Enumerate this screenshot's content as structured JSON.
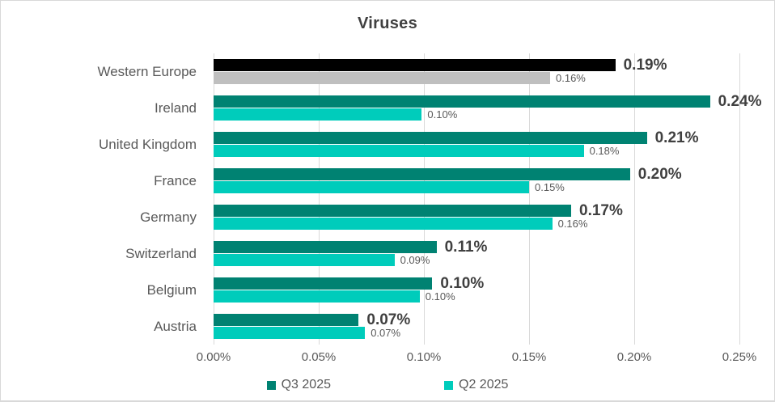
{
  "chart_data": {
    "type": "bar",
    "orientation": "horizontal",
    "title": "Viruses",
    "xlabel": "",
    "ylabel": "",
    "xlim_percent": [
      0,
      0.25
    ],
    "x_tick_labels": [
      "0.00%",
      "0.05%",
      "0.10%",
      "0.15%",
      "0.20%",
      "0.25%"
    ],
    "grid": true,
    "legend_position": "bottom",
    "legend": [
      {
        "label": "Q3 2025",
        "color": "#008272"
      },
      {
        "label": "Q2 2025",
        "color": "#00CCBB"
      }
    ],
    "rows": [
      {
        "category": "Western Europe",
        "q3": {
          "value": 0.191,
          "label": "0.19%",
          "color": "#000000"
        },
        "q2": {
          "value": 0.16,
          "label": "0.16%",
          "color": "#BFBFBF"
        }
      },
      {
        "category": "Ireland",
        "q3": {
          "value": 0.236,
          "label": "0.24%",
          "color": "#008272"
        },
        "q2": {
          "value": 0.099,
          "label": "0.10%",
          "color": "#00CCBB"
        }
      },
      {
        "category": "United Kingdom",
        "q3": {
          "value": 0.206,
          "label": "0.21%",
          "color": "#008272"
        },
        "q2": {
          "value": 0.176,
          "label": "0.18%",
          "color": "#00CCBB"
        }
      },
      {
        "category": "France",
        "q3": {
          "value": 0.198,
          "label": "0.20%",
          "color": "#008272"
        },
        "q2": {
          "value": 0.15,
          "label": "0.15%",
          "color": "#00CCBB"
        }
      },
      {
        "category": "Germany",
        "q3": {
          "value": 0.17,
          "label": "0.17%",
          "color": "#008272"
        },
        "q2": {
          "value": 0.161,
          "label": "0.16%",
          "color": "#00CCBB"
        }
      },
      {
        "category": "Switzerland",
        "q3": {
          "value": 0.106,
          "label": "0.11%",
          "color": "#008272"
        },
        "q2": {
          "value": 0.086,
          "label": "0.09%",
          "color": "#00CCBB"
        }
      },
      {
        "category": "Belgium",
        "q3": {
          "value": 0.104,
          "label": "0.10%",
          "color": "#008272"
        },
        "q2": {
          "value": 0.098,
          "label": "0.10%",
          "color": "#00CCBB"
        }
      },
      {
        "category": "Austria",
        "q3": {
          "value": 0.069,
          "label": "0.07%",
          "color": "#008272"
        },
        "q2": {
          "value": 0.072,
          "label": "0.07%",
          "color": "#00CCBB"
        }
      }
    ],
    "colors": {
      "background": "#FFFFFF",
      "border": "#D9D9D9",
      "gridline": "#D9D9D9",
      "title_text": "#404040",
      "category_text": "#595959",
      "axis_tick_text": "#595959",
      "q3_data_label_text": "#404040",
      "q2_data_label_text": "#595959"
    }
  }
}
